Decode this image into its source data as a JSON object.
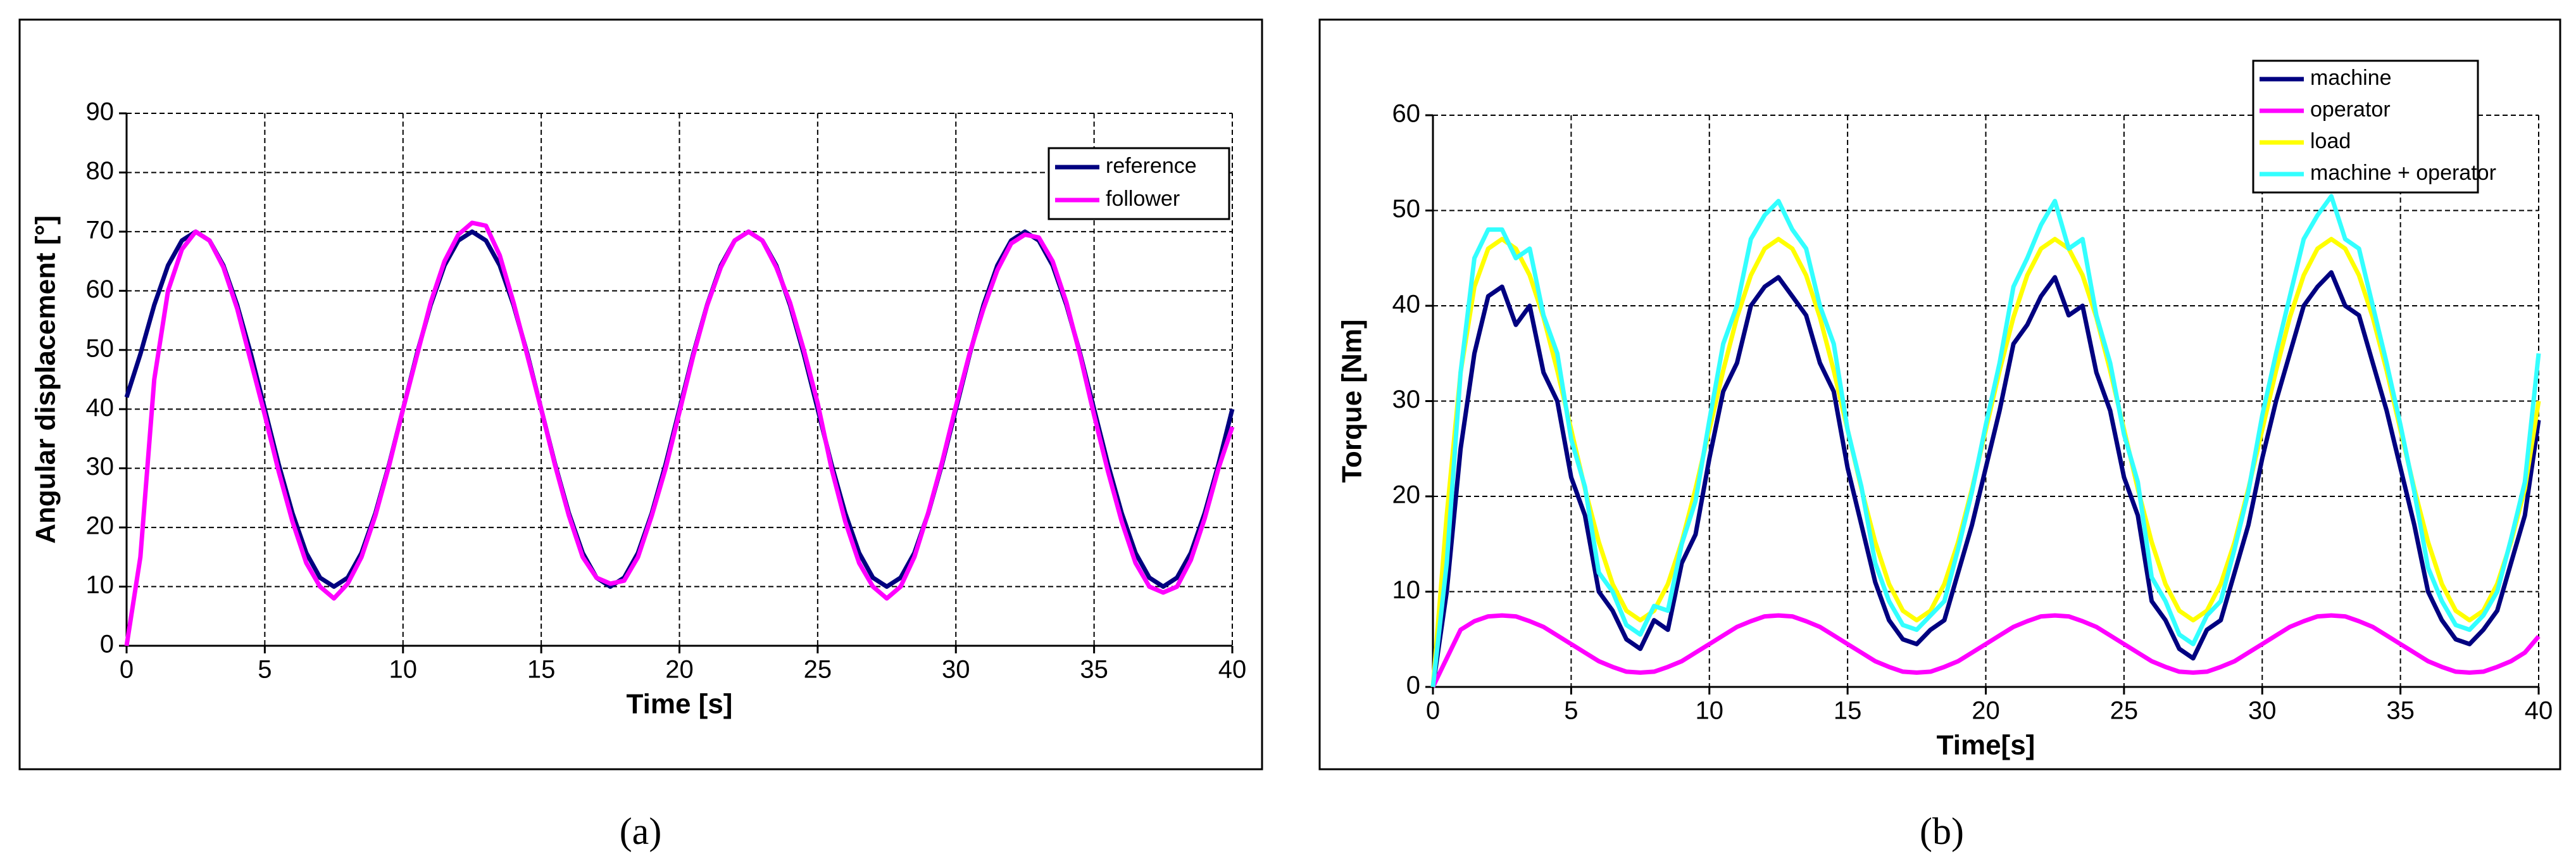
{
  "chart_data": [
    {
      "type": "line",
      "caption": "(a)",
      "xlabel": "Time [s]",
      "ylabel": "Angular displacement [°]",
      "xlim": [
        0,
        40
      ],
      "xticks": [
        0,
        5,
        10,
        15,
        20,
        25,
        30,
        35,
        40
      ],
      "ylim": [
        0,
        90
      ],
      "yticks": [
        0,
        10,
        20,
        30,
        40,
        50,
        60,
        70,
        80,
        90
      ],
      "grid": true,
      "legend": "upper right",
      "x": [
        0,
        0.5,
        1,
        1.5,
        2,
        2.5,
        3,
        3.5,
        4,
        4.5,
        5,
        5.5,
        6,
        6.5,
        7,
        7.5,
        8,
        8.5,
        9,
        9.5,
        10,
        10.5,
        11,
        11.5,
        12,
        12.5,
        13,
        13.5,
        14,
        14.5,
        15,
        15.5,
        16,
        16.5,
        17,
        17.5,
        18,
        18.5,
        19,
        19.5,
        20,
        20.5,
        21,
        21.5,
        22,
        22.5,
        23,
        23.5,
        24,
        24.5,
        25,
        25.5,
        26,
        26.5,
        27,
        27.5,
        28,
        28.5,
        29,
        29.5,
        30,
        30.5,
        31,
        31.5,
        32,
        32.5,
        33,
        33.5,
        34,
        34.5,
        35,
        35.5,
        36,
        36.5,
        37,
        37.5,
        38,
        38.5,
        39,
        39.5,
        40
      ],
      "series": [
        {
          "name": "reference",
          "color": "#000080",
          "values": [
            42,
            49.3,
            57.6,
            64.3,
            68.5,
            70,
            68.5,
            64.3,
            57.6,
            49.3,
            40,
            30.7,
            22.4,
            15.7,
            11.5,
            10,
            11.5,
            15.7,
            22.4,
            30.7,
            40,
            49.3,
            57.6,
            64.3,
            68.5,
            70,
            68.5,
            64.3,
            57.6,
            49.3,
            40,
            30.7,
            22.4,
            15.7,
            11.5,
            10,
            11.5,
            15.7,
            22.4,
            30.7,
            40,
            49.3,
            57.6,
            64.3,
            68.5,
            70,
            68.5,
            64.3,
            57.6,
            49.3,
            40,
            30.7,
            22.4,
            15.7,
            11.5,
            10,
            11.5,
            15.7,
            22.4,
            30.7,
            40,
            49.3,
            57.6,
            64.3,
            68.5,
            70,
            68.5,
            64.3,
            57.6,
            49.3,
            40,
            30.7,
            22.4,
            15.7,
            11.5,
            10,
            11.5,
            15.7,
            22.4,
            30.7,
            40
          ]
        },
        {
          "name": "follower",
          "color": "#ff00ff",
          "values": [
            0,
            15,
            45,
            60,
            67,
            70,
            68.5,
            64,
            57,
            48,
            39,
            29.5,
            21,
            14,
            10,
            8,
            10.5,
            15,
            22,
            30.5,
            40,
            49,
            58,
            65,
            69.5,
            71.5,
            71,
            66,
            58,
            49,
            40,
            30.5,
            22,
            15,
            11.5,
            10.5,
            11,
            15,
            22,
            30,
            39.5,
            49,
            57.5,
            64,
            68.5,
            70,
            68.5,
            64,
            58,
            50,
            41,
            30,
            21,
            14,
            10,
            8,
            10,
            15,
            22.5,
            31,
            40.5,
            49.5,
            57,
            63.5,
            68,
            69.5,
            69,
            65,
            58,
            49,
            39,
            29.5,
            21,
            14,
            10,
            9,
            10,
            14.5,
            21.5,
            30,
            37
          ]
        }
      ]
    },
    {
      "type": "line",
      "caption": "(b)",
      "xlabel": "Time[s]",
      "ylabel": "Torque [Nm]",
      "xlim": [
        0,
        40
      ],
      "xticks": [
        0,
        5,
        10,
        15,
        20,
        25,
        30,
        35,
        40
      ],
      "ylim": [
        0,
        60
      ],
      "yticks": [
        0,
        10,
        20,
        30,
        40,
        50,
        60
      ],
      "grid": true,
      "legend": "upper right",
      "x": [
        0,
        0.5,
        1,
        1.5,
        2,
        2.5,
        3,
        3.5,
        4,
        4.5,
        5,
        5.5,
        6,
        6.5,
        7,
        7.5,
        8,
        8.5,
        9,
        9.5,
        10,
        10.5,
        11,
        11.5,
        12,
        12.5,
        13,
        13.5,
        14,
        14.5,
        15,
        15.5,
        16,
        16.5,
        17,
        17.5,
        18,
        18.5,
        19,
        19.5,
        20,
        20.5,
        21,
        21.5,
        22,
        22.5,
        23,
        23.5,
        24,
        24.5,
        25,
        25.5,
        26,
        26.5,
        27,
        27.5,
        28,
        28.5,
        29,
        29.5,
        30,
        30.5,
        31,
        31.5,
        32,
        32.5,
        33,
        33.5,
        34,
        34.5,
        35,
        35.5,
        36,
        36.5,
        37,
        37.5,
        38,
        38.5,
        39,
        39.5,
        40
      ],
      "series": [
        {
          "name": "machine",
          "color": "#000080",
          "values": [
            0,
            10,
            25,
            35,
            41,
            42,
            38,
            40,
            33,
            30,
            22,
            18,
            10,
            8,
            5,
            4,
            7,
            6,
            13,
            16,
            24,
            31,
            34,
            40,
            42,
            43,
            41,
            39,
            34,
            31,
            23,
            17,
            11,
            7,
            5,
            4.5,
            6,
            7,
            12,
            17,
            23,
            29,
            36,
            38,
            41,
            43,
            39,
            40,
            33,
            29,
            22,
            18,
            9,
            7,
            4,
            3,
            6,
            7,
            12,
            17,
            24,
            30,
            35,
            40,
            42,
            43.5,
            40,
            39,
            34,
            29,
            23,
            17,
            10,
            7,
            5,
            4.5,
            6,
            8,
            13,
            18,
            28
          ]
        },
        {
          "name": "operator",
          "color": "#ff00ff",
          "values": [
            0,
            3,
            6,
            6.9,
            7.4,
            7.5,
            7.4,
            6.9,
            6.3,
            5.4,
            4.5,
            3.6,
            2.7,
            2.1,
            1.6,
            1.5,
            1.6,
            2.1,
            2.7,
            3.6,
            4.5,
            5.4,
            6.3,
            6.9,
            7.4,
            7.5,
            7.4,
            6.9,
            6.3,
            5.4,
            4.5,
            3.6,
            2.7,
            2.1,
            1.6,
            1.5,
            1.6,
            2.1,
            2.7,
            3.6,
            4.5,
            5.4,
            6.3,
            6.9,
            7.4,
            7.5,
            7.4,
            6.9,
            6.3,
            5.4,
            4.5,
            3.6,
            2.7,
            2.1,
            1.6,
            1.5,
            1.6,
            2.1,
            2.7,
            3.6,
            4.5,
            5.4,
            6.3,
            6.9,
            7.4,
            7.5,
            7.4,
            6.9,
            6.3,
            5.4,
            4.5,
            3.6,
            2.7,
            2.1,
            1.6,
            1.5,
            1.6,
            2.1,
            2.7,
            3.6,
            5.3
          ]
        },
        {
          "name": "load",
          "color": "#ffff00",
          "values": [
            0,
            18,
            33,
            42,
            46,
            47,
            46,
            43.2,
            38.8,
            33.2,
            27,
            20.8,
            15.2,
            10.8,
            8,
            7,
            8,
            10.8,
            15.2,
            20.8,
            27,
            33.2,
            38.8,
            43.2,
            46,
            47,
            46,
            43.2,
            38.8,
            33.2,
            27,
            20.8,
            15.2,
            10.8,
            8,
            7,
            8,
            10.8,
            15.2,
            20.8,
            27,
            33.2,
            38.8,
            43.2,
            46,
            47,
            46,
            43.2,
            38.8,
            33.2,
            27,
            20.8,
            15.2,
            10.8,
            8,
            7,
            8,
            10.8,
            15.2,
            20.8,
            27,
            33.2,
            38.8,
            43.2,
            46,
            47,
            46,
            43.2,
            38.8,
            33.2,
            27,
            20.8,
            15.2,
            10.8,
            8,
            7,
            8,
            10.8,
            15.2,
            20.8,
            30
          ]
        },
        {
          "name": "machine + operator",
          "color": "#33ffff",
          "values": [
            0,
            13,
            33,
            45,
            48,
            48,
            45,
            46,
            39,
            35,
            26,
            21,
            12,
            10,
            6.5,
            5.5,
            8.5,
            8,
            15,
            19.5,
            28,
            36,
            40,
            47,
            49.5,
            51,
            48,
            46,
            40,
            36,
            27,
            21,
            13,
            9,
            6.5,
            6,
            7.5,
            9,
            14.5,
            20.5,
            27.5,
            34,
            42,
            45,
            48.5,
            51,
            46,
            47,
            39,
            34,
            26.5,
            21.5,
            11.5,
            9,
            5.5,
            4.5,
            7.5,
            9,
            14.5,
            20.5,
            28.5,
            35,
            41,
            47,
            49.5,
            51.5,
            47,
            46,
            40,
            34,
            27.5,
            20.5,
            12.5,
            9,
            6.5,
            6,
            7.5,
            10,
            15.5,
            21.5,
            35
          ]
        }
      ]
    }
  ]
}
